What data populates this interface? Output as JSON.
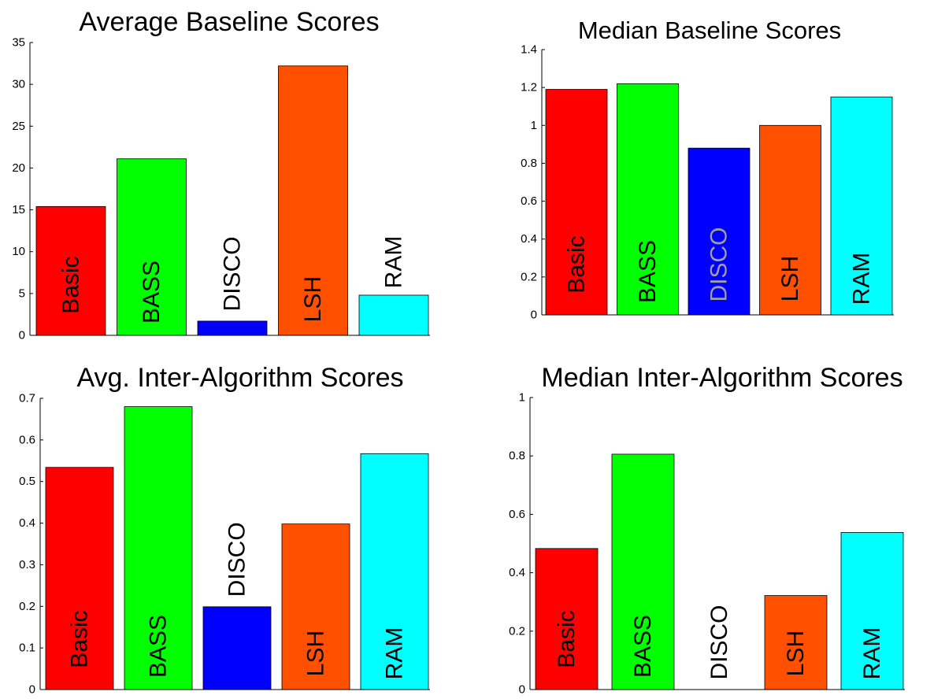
{
  "chart_data": [
    {
      "type": "bar",
      "title": "Average Baseline Scores",
      "xlabel": "",
      "ylabel": "",
      "ylim": [
        0,
        35
      ],
      "yticks": [
        0,
        5,
        10,
        15,
        20,
        25,
        30,
        35
      ],
      "ytick_labels": [
        "0",
        "5",
        "10",
        "15",
        "20",
        "25",
        "30",
        "35"
      ],
      "grid": false,
      "categories": [
        "Basic",
        "BASS",
        "DISCO",
        "LSH",
        "RAM"
      ],
      "values": [
        15.4,
        21.1,
        1.7,
        32.2,
        4.8
      ],
      "colors": [
        "#ff0000",
        "#00ff00",
        "#0000ff",
        "#ff5000",
        "#00ffff"
      ],
      "label_colors": [
        "#000000",
        "#000000",
        "#000000",
        "#000000",
        "#000000"
      ]
    },
    {
      "type": "bar",
      "title": "Median Baseline Scores",
      "xlabel": "",
      "ylabel": "",
      "ylim": [
        0,
        1.4
      ],
      "yticks": [
        0,
        0.2,
        0.4,
        0.6,
        0.8,
        1,
        1.2,
        1.4
      ],
      "ytick_labels": [
        "0",
        "0.2",
        "0.4",
        "0.6",
        "0.8",
        "1",
        "1.2",
        "1.4"
      ],
      "grid": false,
      "categories": [
        "Basic",
        "BASS",
        "DISCO",
        "LSH",
        "RAM"
      ],
      "values": [
        1.19,
        1.22,
        0.88,
        1.0,
        1.15
      ],
      "colors": [
        "#ff0000",
        "#00ff00",
        "#0000ff",
        "#ff5000",
        "#00ffff"
      ],
      "label_colors": [
        "#000000",
        "#000000",
        "#a0a0a0",
        "#000000",
        "#000000"
      ]
    },
    {
      "type": "bar",
      "title": "Avg. Inter-Algorithm Scores",
      "xlabel": "",
      "ylabel": "",
      "ylim": [
        0,
        0.7
      ],
      "yticks": [
        0,
        0.1,
        0.2,
        0.3,
        0.4,
        0.5,
        0.6,
        0.7
      ],
      "ytick_labels": [
        "0",
        "0.1",
        "0.2",
        "0.3",
        "0.4",
        "0.5",
        "0.6",
        "0.7"
      ],
      "grid": false,
      "categories": [
        "Basic",
        "BASS",
        "DISCO",
        "LSH",
        "RAM"
      ],
      "values": [
        0.534,
        0.68,
        0.199,
        0.398,
        0.567
      ],
      "colors": [
        "#ff0000",
        "#00ff00",
        "#0000ff",
        "#ff5000",
        "#00ffff"
      ],
      "label_colors": [
        "#000000",
        "#000000",
        "#000000",
        "#000000",
        "#000000"
      ]
    },
    {
      "type": "bar",
      "title": "Median Inter-Algorithm Scores",
      "xlabel": "",
      "ylabel": "",
      "ylim": [
        0,
        1
      ],
      "yticks": [
        0,
        0.2,
        0.4,
        0.6,
        0.8,
        1
      ],
      "ytick_labels": [
        "0",
        "0.2",
        "0.4",
        "0.6",
        "0.8",
        "1"
      ],
      "grid": false,
      "categories": [
        "Basic",
        "BASS",
        "DISCO",
        "LSH",
        "RAM"
      ],
      "values": [
        0.483,
        0.806,
        0.0,
        0.322,
        0.538
      ],
      "colors": [
        "#ff0000",
        "#00ff00",
        "#0000ff",
        "#ff5000",
        "#00ffff"
      ],
      "label_colors": [
        "#000000",
        "#000000",
        "#000000",
        "#000000",
        "#000000"
      ]
    }
  ]
}
